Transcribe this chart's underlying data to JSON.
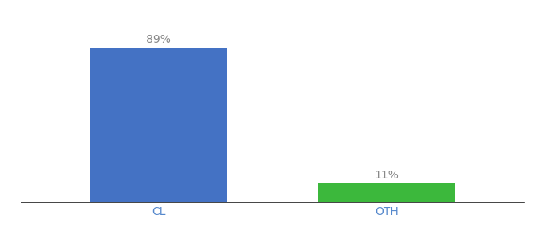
{
  "categories": [
    "CL",
    "OTH"
  ],
  "values": [
    89,
    11
  ],
  "bar_colors": [
    "#4472c4",
    "#3cb83c"
  ],
  "label_texts": [
    "89%",
    "11%"
  ],
  "label_color": "#888888",
  "xlabel": "",
  "ylabel": "",
  "ylim": [
    0,
    100
  ],
  "background_color": "#ffffff",
  "bar_width": 0.6,
  "title_fontsize": 11,
  "label_fontsize": 10,
  "xtick_fontsize": 10,
  "xlim": [
    -0.6,
    1.6
  ]
}
